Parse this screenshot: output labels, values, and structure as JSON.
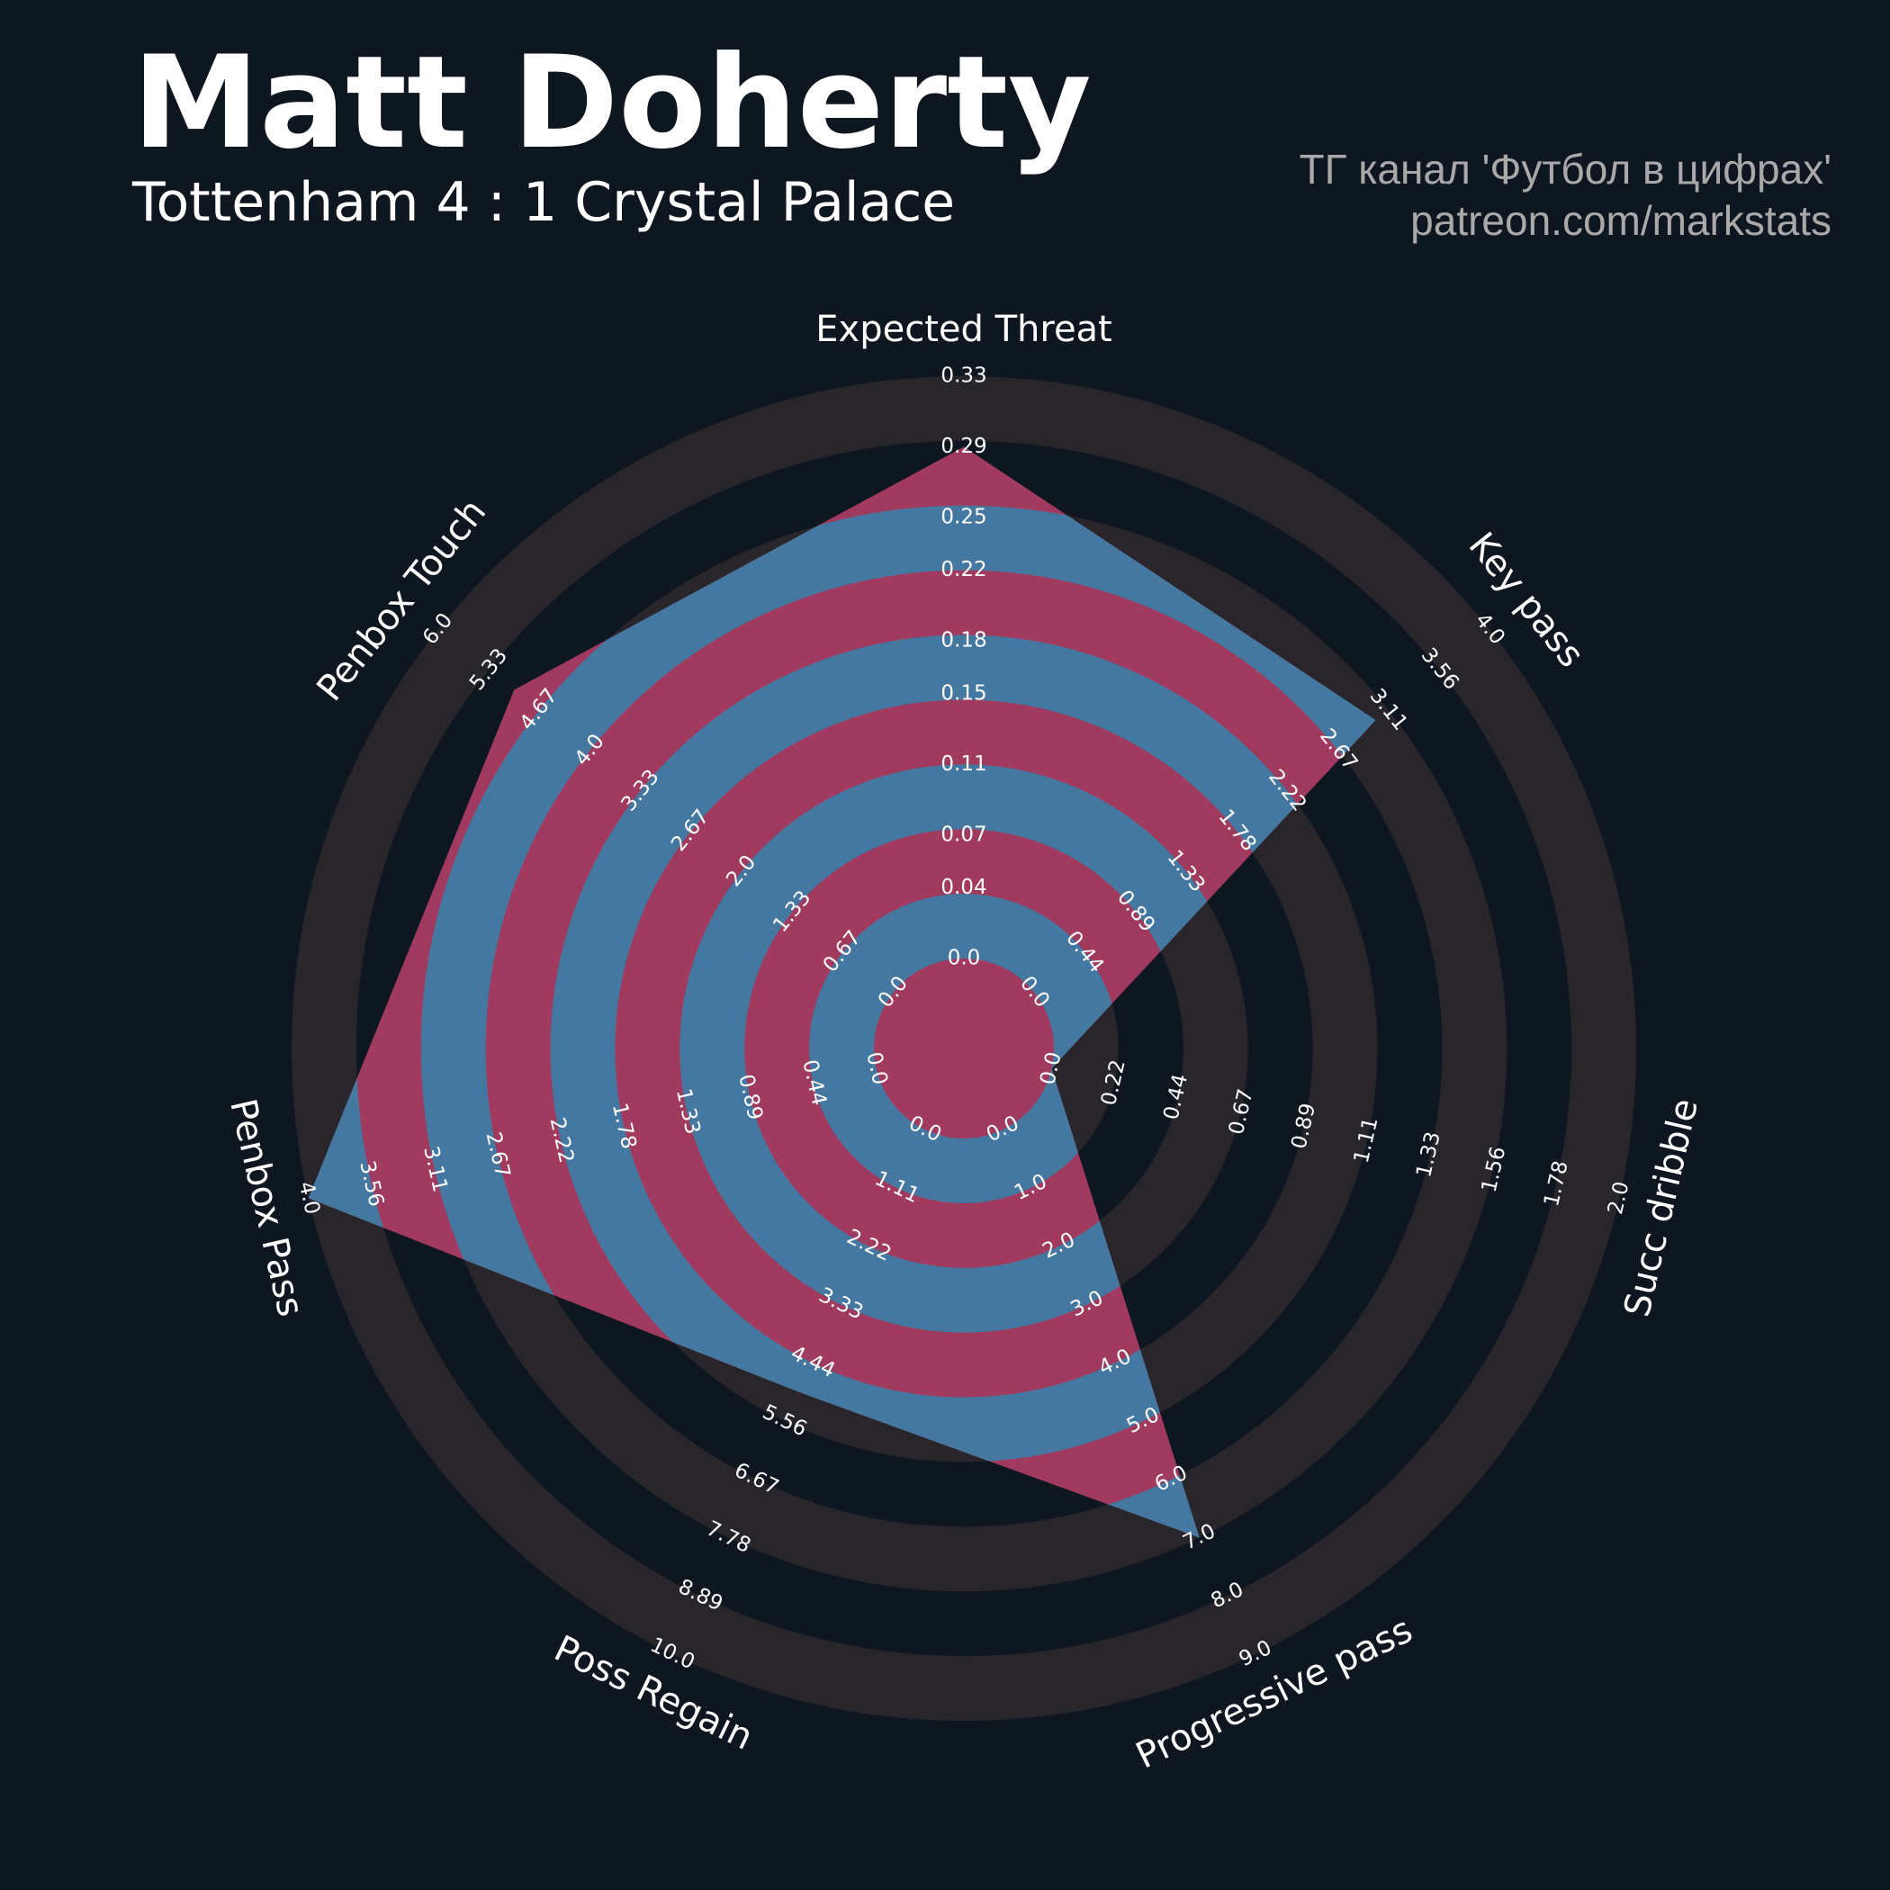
{
  "chart_data": {
    "type": "radar",
    "title": "Matt Doherty",
    "subtitle": "Tottenham 4 : 1 Crystal Palace",
    "credits": [
      "ТГ канал 'Футбол в цифрах'",
      "patreon.com/markstats"
    ],
    "categories": [
      "Expected Threat",
      "Key pass",
      "Succ dribble",
      "Progressive pass",
      "Poss Regain",
      "Penbox Pass",
      "Penbox Touch"
    ],
    "values": [
      0.29,
      3,
      0,
      7,
      5,
      4,
      5
    ],
    "ranges": [
      [
        0,
        0.33
      ],
      [
        0,
        4
      ],
      [
        0,
        2
      ],
      [
        0,
        9
      ],
      [
        0,
        10
      ],
      [
        0,
        4
      ],
      [
        0,
        6
      ]
    ],
    "ticks": [
      [
        {
          "value": 0,
          "label": "0.0"
        },
        0.04,
        0.07,
        0.11,
        0.15,
        0.18,
        0.22,
        0.25,
        0.29,
        0.33
      ],
      [
        {
          "value": 0,
          "label": "0.0"
        },
        0.44,
        0.89,
        1.33,
        1.78,
        2.22,
        2.67,
        3.11,
        3.56,
        {
          "value": 4,
          "label": "4.0"
        }
      ],
      [
        {
          "value": 0,
          "label": "0.0"
        },
        0.22,
        0.44,
        0.67,
        0.89,
        1.11,
        1.33,
        1.56,
        1.78,
        {
          "value": 2,
          "label": "2.0"
        }
      ],
      [
        {
          "value": 0,
          "label": "0.0"
        },
        {
          "value": 1,
          "label": "1.0"
        },
        {
          "value": 2,
          "label": "2.0"
        },
        {
          "value": 3,
          "label": "3.0"
        },
        {
          "value": 4,
          "label": "4.0"
        },
        {
          "value": 5,
          "label": "5.0"
        },
        {
          "value": 6,
          "label": "6.0"
        },
        {
          "value": 7,
          "label": "7.0"
        },
        {
          "value": 8,
          "label": "8.0"
        },
        {
          "value": 9,
          "label": "9.0"
        }
      ],
      [
        {
          "value": 0,
          "label": "0.0"
        },
        1.11,
        2.22,
        3.33,
        4.44,
        5.56,
        6.67,
        7.78,
        8.89,
        {
          "value": 10,
          "label": "10.0"
        }
      ],
      [
        {
          "value": 0,
          "label": "0.0"
        },
        0.44,
        0.89,
        1.33,
        1.78,
        2.22,
        2.67,
        3.11,
        3.56,
        {
          "value": 4,
          "label": "4.0"
        }
      ],
      [
        {
          "value": 0,
          "label": "0.0"
        },
        0.67,
        1.33,
        {
          "value": 2,
          "label": "2.0"
        },
        2.67,
        3.33,
        {
          "value": 4,
          "label": "4.0"
        },
        4.67,
        5.33,
        {
          "value": 6,
          "label": "6.0"
        }
      ]
    ],
    "color": "#a13a5f",
    "color_alt": "#4478a0"
  }
}
